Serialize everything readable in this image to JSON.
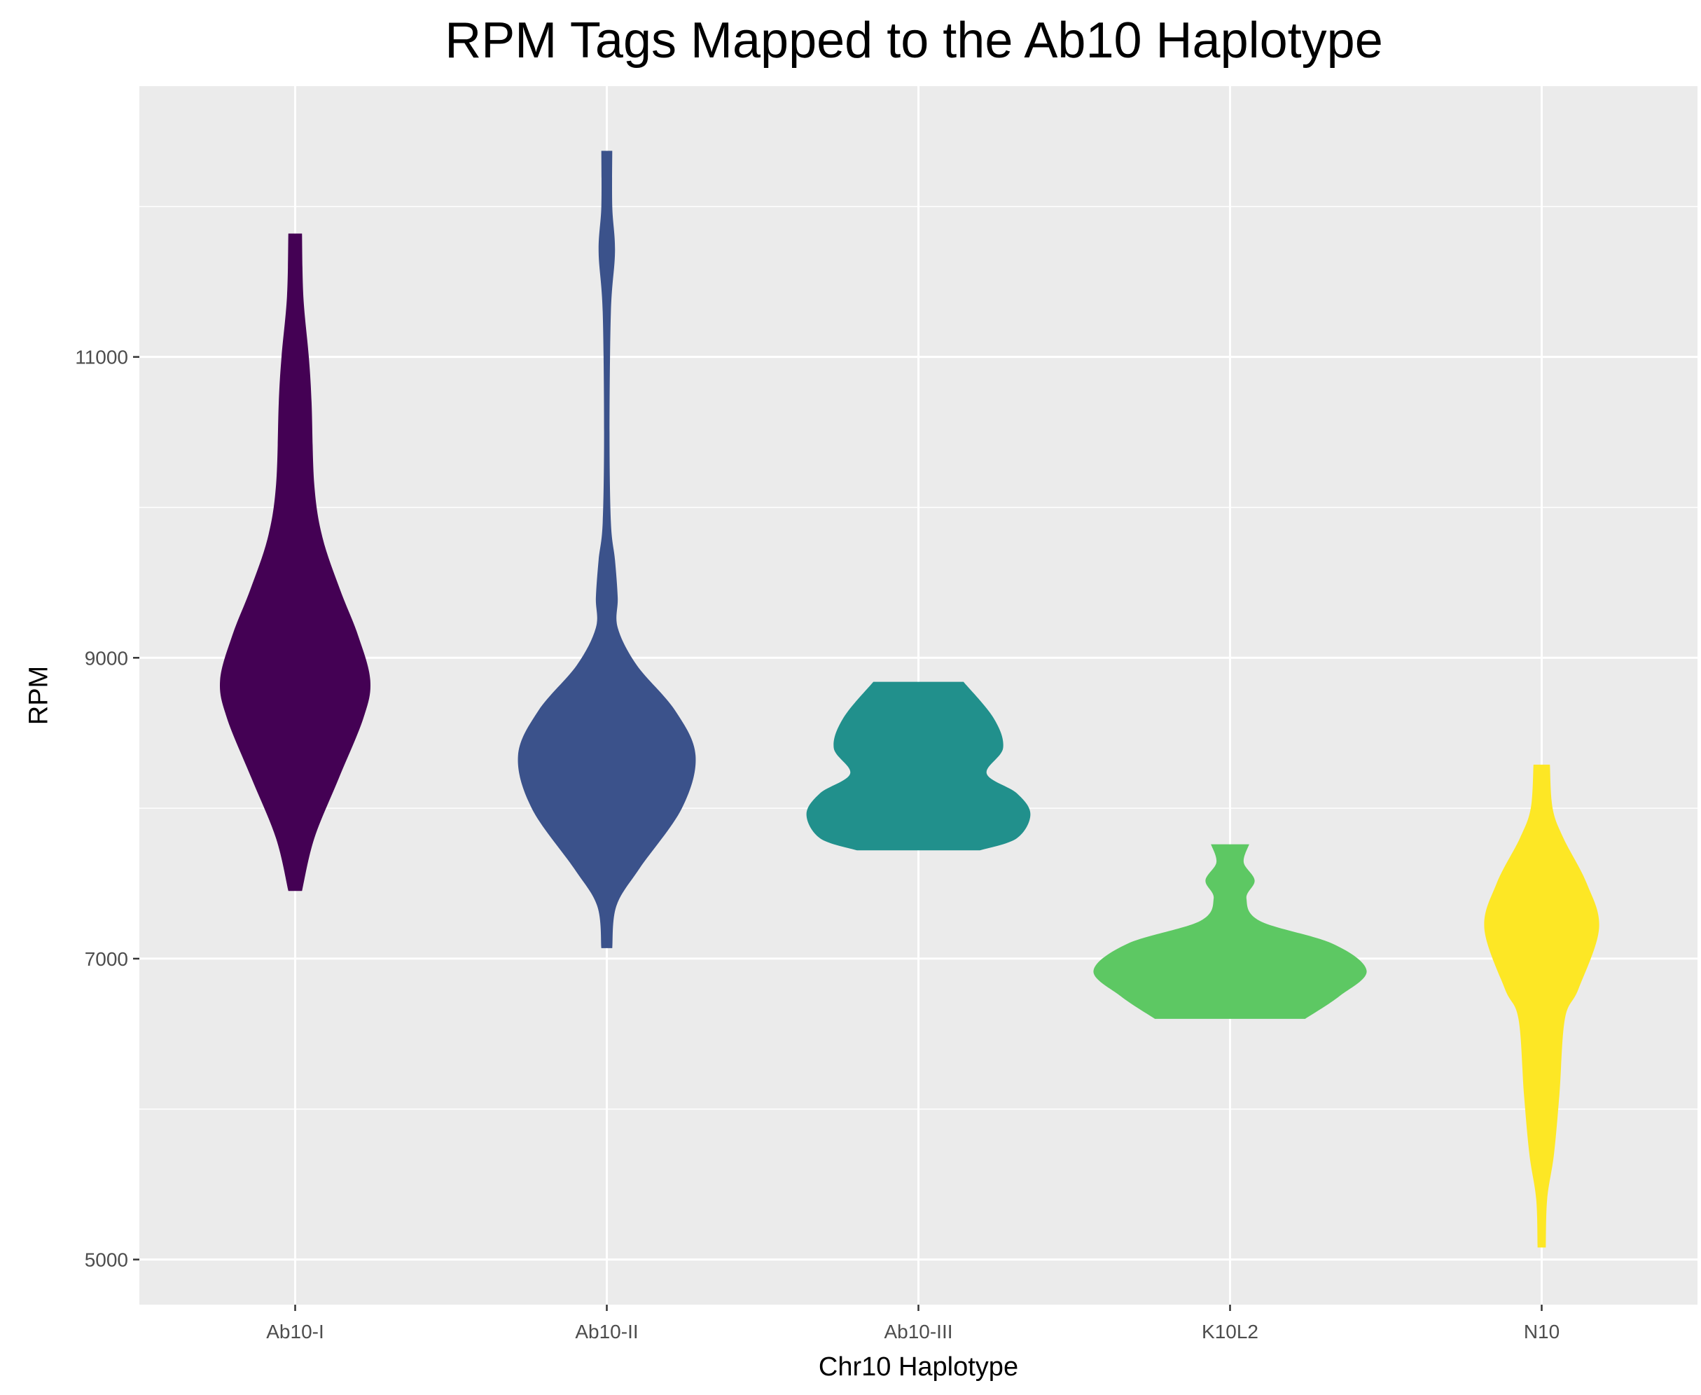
{
  "chart_data": {
    "type": "violin",
    "title": "RPM Tags Mapped to the Ab10 Haplotype",
    "xlabel": "Chr10 Haplotype",
    "ylabel": "RPM",
    "ylim": [
      4700,
      12800
    ],
    "yticks": [
      5000,
      7000,
      9000,
      11000
    ],
    "ytick_labels": [
      "5000",
      "7000",
      "9000",
      "11000"
    ],
    "ygrid_minor": [
      6000,
      8000,
      10000,
      12000
    ],
    "categories": [
      "Ab10-I",
      "Ab10-II",
      "Ab10-III",
      "K10L2",
      "N10"
    ],
    "grid": true,
    "legend": "none",
    "colors": {
      "panel_background": "#EBEBEB",
      "grid": "#FFFFFF",
      "Ab10-I": "#440154",
      "Ab10-II": "#3B528B",
      "Ab10-III": "#21908C",
      "K10L2": "#5DC863",
      "N10": "#FDE725"
    },
    "series": [
      {
        "category": "Ab10-I",
        "color": "#440154",
        "min": 7450,
        "max": 11820,
        "density": [
          [
            7450,
            0.05
          ],
          [
            7800,
            0.14
          ],
          [
            8200,
            0.32
          ],
          [
            8600,
            0.5
          ],
          [
            8850,
            0.55
          ],
          [
            9150,
            0.46
          ],
          [
            9450,
            0.33
          ],
          [
            9800,
            0.2
          ],
          [
            10150,
            0.14
          ],
          [
            10700,
            0.12
          ],
          [
            11000,
            0.1
          ],
          [
            11400,
            0.06
          ],
          [
            11820,
            0.05
          ]
        ]
      },
      {
        "category": "Ab10-II",
        "color": "#3B528B",
        "min": 7070,
        "max": 12370,
        "density": [
          [
            7070,
            0.04
          ],
          [
            7350,
            0.07
          ],
          [
            7600,
            0.24
          ],
          [
            8000,
            0.55
          ],
          [
            8350,
            0.65
          ],
          [
            8650,
            0.5
          ],
          [
            8950,
            0.22
          ],
          [
            9200,
            0.08
          ],
          [
            9400,
            0.08
          ],
          [
            9650,
            0.06
          ],
          [
            9900,
            0.03
          ],
          [
            10500,
            0.02
          ],
          [
            11300,
            0.03
          ],
          [
            11700,
            0.06
          ],
          [
            12000,
            0.04
          ],
          [
            12370,
            0.04
          ]
        ]
      },
      {
        "category": "Ab10-III",
        "color": "#21908C",
        "min": 7720,
        "max": 8840,
        "density": [
          [
            7720,
            0.45
          ],
          [
            7800,
            0.72
          ],
          [
            7960,
            0.82
          ],
          [
            8100,
            0.72
          ],
          [
            8230,
            0.5
          ],
          [
            8400,
            0.62
          ],
          [
            8600,
            0.55
          ],
          [
            8840,
            0.33
          ]
        ]
      },
      {
        "category": "K10L2",
        "color": "#5DC863",
        "min": 6600,
        "max": 7760,
        "density": [
          [
            6600,
            0.55
          ],
          [
            6750,
            0.8
          ],
          [
            6920,
            1.0
          ],
          [
            7100,
            0.75
          ],
          [
            7250,
            0.22
          ],
          [
            7400,
            0.12
          ],
          [
            7520,
            0.18
          ],
          [
            7640,
            0.1
          ],
          [
            7760,
            0.14
          ]
        ]
      },
      {
        "category": "N10",
        "color": "#FDE725",
        "min": 5080,
        "max": 8290,
        "density": [
          [
            5080,
            0.03
          ],
          [
            5400,
            0.04
          ],
          [
            5700,
            0.09
          ],
          [
            6100,
            0.13
          ],
          [
            6600,
            0.17
          ],
          [
            6800,
            0.27
          ],
          [
            7200,
            0.42
          ],
          [
            7500,
            0.33
          ],
          [
            7800,
            0.16
          ],
          [
            8000,
            0.08
          ],
          [
            8290,
            0.06
          ]
        ]
      }
    ]
  }
}
